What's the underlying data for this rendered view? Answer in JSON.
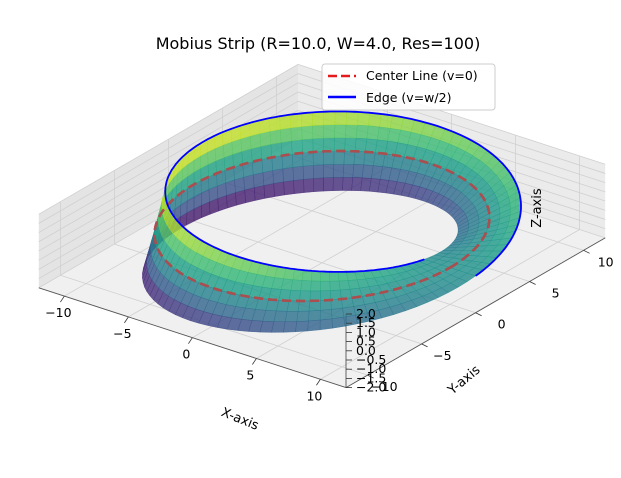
{
  "chart_data": {
    "type": "surface3d",
    "title": "Mobius Strip (R=10.0, W=4.0, Res=100)",
    "params": {
      "R": 10.0,
      "W": 4.0,
      "Res": 100
    },
    "colormap": "viridis",
    "axes": {
      "x": {
        "label": "X-axis",
        "range": [
          -12,
          12
        ],
        "ticks": [
          -10,
          -5,
          0,
          5,
          10
        ]
      },
      "y": {
        "label": "Y-axis",
        "range": [
          -12,
          12
        ],
        "ticks": [
          -10,
          -5,
          0,
          5,
          10
        ]
      },
      "z": {
        "label": "Z-axis",
        "range": [
          -2,
          2
        ],
        "ticks": [
          -2.0,
          -1.5,
          -1.0,
          -0.5,
          0.0,
          0.5,
          1.0,
          1.5,
          2.0
        ]
      }
    },
    "grid": true,
    "legend": {
      "placement": "top-right",
      "entries": [
        {
          "label": "Center Line (v=0)",
          "color": "#e41a1c",
          "style": "dashed"
        },
        {
          "label": "Edge (v=w/2)",
          "color": "#0000ff",
          "style": "solid"
        }
      ]
    },
    "series": [
      {
        "name": "Center Line (v=0)",
        "v": 0,
        "u_range": [
          0,
          6.2832
        ]
      },
      {
        "name": "Edge (v=w/2)",
        "v": 2.0,
        "u_range": [
          0,
          6.2832
        ]
      }
    ]
  }
}
